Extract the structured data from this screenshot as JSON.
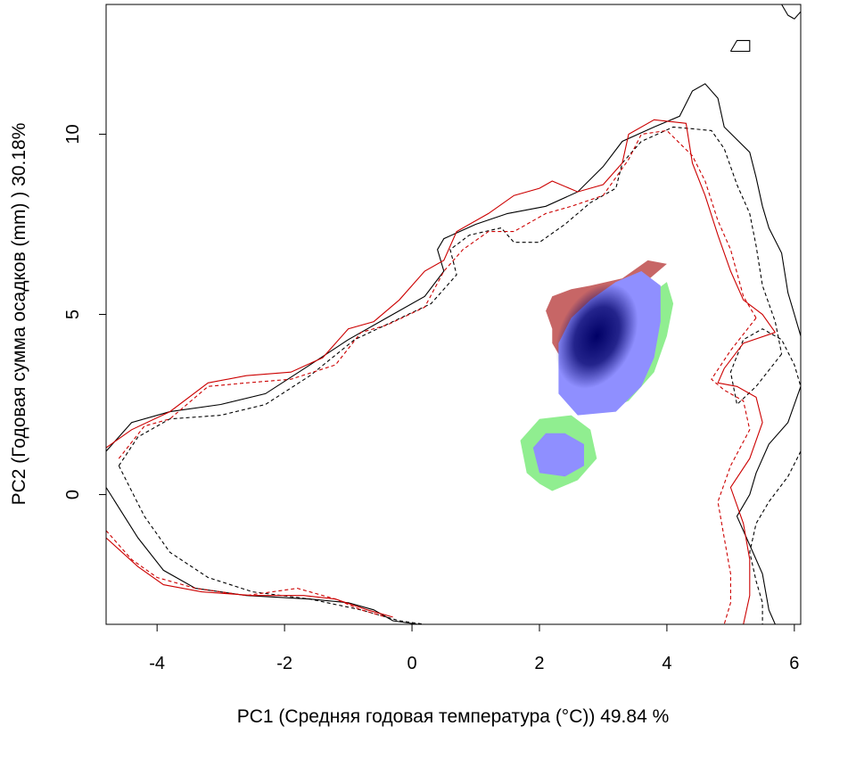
{
  "chart_data": {
    "type": "contour",
    "xlabel": "PC1 (Средняя годовая температура (°C)) 49.84 %",
    "ylabel": "PC2 (Годовая сумма осадков  (mm) ) 30.18%",
    "xlim": [
      -4.8,
      6.1
    ],
    "ylim": [
      -3.6,
      13.6
    ],
    "x_ticks": [
      -4,
      -2,
      0,
      2,
      4,
      6
    ],
    "y_ticks": [
      0,
      5,
      10
    ],
    "x_tick_labels": [
      "-4",
      "-2",
      "0",
      "2",
      "4",
      "6"
    ],
    "y_tick_labels": [
      "0",
      "5",
      "10"
    ],
    "grid": false,
    "legend": "none",
    "colors": {
      "black": "#000000",
      "red": "#cc0000",
      "overlap_red": "#c76666",
      "overlap_green": "#90ee90",
      "overlap_blue_light": "#8f8fff",
      "overlap_blue_dark": "#000066"
    },
    "contours": [
      {
        "color": "#000000",
        "style": "solid",
        "points": [
          [
            -4.8,
            0.2
          ],
          [
            -4.3,
            -1.2
          ],
          [
            -3.9,
            -2.1
          ],
          [
            -3.4,
            -2.6
          ],
          [
            -2.6,
            -2.8
          ],
          [
            -1.6,
            -2.9
          ],
          [
            -1.0,
            -3.0
          ],
          [
            -0.6,
            -3.2
          ],
          [
            -0.3,
            -3.5
          ],
          [
            0.1,
            -3.6
          ]
        ]
      },
      {
        "color": "#000000",
        "style": "solid",
        "points": [
          [
            -4.8,
            1.2
          ],
          [
            -4.4,
            2.0
          ],
          [
            -3.8,
            2.3
          ],
          [
            -3.0,
            2.5
          ],
          [
            -2.3,
            2.8
          ],
          [
            -1.6,
            3.6
          ],
          [
            -1.0,
            4.3
          ],
          [
            -0.4,
            4.9
          ],
          [
            0.2,
            5.5
          ],
          [
            0.5,
            6.2
          ],
          [
            0.4,
            6.8
          ],
          [
            0.5,
            7.1
          ],
          [
            1.0,
            7.5
          ],
          [
            1.5,
            7.8
          ],
          [
            2.1,
            8.0
          ],
          [
            2.6,
            8.4
          ],
          [
            3.0,
            9.1
          ],
          [
            3.3,
            9.8
          ],
          [
            3.8,
            10.2
          ],
          [
            4.2,
            10.5
          ],
          [
            4.4,
            11.2
          ],
          [
            4.6,
            11.4
          ],
          [
            4.8,
            11.0
          ],
          [
            4.9,
            10.2
          ],
          [
            5.3,
            9.5
          ],
          [
            5.4,
            8.8
          ],
          [
            5.5,
            8.0
          ],
          [
            5.6,
            7.4
          ],
          [
            5.8,
            6.7
          ],
          [
            5.9,
            5.6
          ],
          [
            6.0,
            5.0
          ],
          [
            6.1,
            4.4
          ]
        ]
      },
      {
        "color": "#000000",
        "style": "solid",
        "points": [
          [
            6.1,
            3.0
          ],
          [
            5.9,
            2.0
          ],
          [
            5.6,
            1.4
          ],
          [
            5.4,
            0.6
          ],
          [
            5.3,
            0.0
          ],
          [
            5.1,
            -0.6
          ],
          [
            5.3,
            -1.4
          ],
          [
            5.5,
            -2.2
          ],
          [
            5.6,
            -3.2
          ],
          [
            5.7,
            -3.6
          ]
        ]
      },
      {
        "color": "#000000",
        "style": "solid",
        "points": [
          [
            5.0,
            12.3
          ],
          [
            5.1,
            12.6
          ],
          [
            5.3,
            12.6
          ],
          [
            5.3,
            12.3
          ],
          [
            5.0,
            12.3
          ]
        ]
      },
      {
        "color": "#000000",
        "style": "solid",
        "points": [
          [
            5.8,
            13.6
          ],
          [
            5.9,
            13.3
          ],
          [
            6.0,
            13.2
          ],
          [
            6.1,
            13.4
          ]
        ]
      },
      {
        "color": "#000000",
        "style": "dashed",
        "points": [
          [
            -4.6,
            0.8
          ],
          [
            -4.2,
            -0.6
          ],
          [
            -3.8,
            -1.6
          ],
          [
            -3.2,
            -2.3
          ],
          [
            -2.5,
            -2.7
          ],
          [
            -1.6,
            -2.9
          ],
          [
            -0.8,
            -3.2
          ],
          [
            -0.2,
            -3.5
          ],
          [
            0.2,
            -3.6
          ]
        ]
      },
      {
        "color": "#000000",
        "style": "dashed",
        "points": [
          [
            -4.6,
            0.8
          ],
          [
            -4.3,
            1.6
          ],
          [
            -3.8,
            2.1
          ],
          [
            -3.0,
            2.2
          ],
          [
            -2.3,
            2.5
          ],
          [
            -1.6,
            3.3
          ],
          [
            -0.9,
            4.3
          ],
          [
            -0.3,
            4.8
          ],
          [
            0.3,
            5.3
          ],
          [
            0.7,
            6.1
          ],
          [
            0.6,
            6.8
          ],
          [
            0.9,
            7.2
          ],
          [
            1.4,
            7.4
          ],
          [
            1.6,
            7.0
          ],
          [
            2.0,
            7.0
          ],
          [
            2.4,
            7.5
          ],
          [
            2.8,
            8.1
          ],
          [
            3.2,
            8.5
          ],
          [
            3.3,
            9.2
          ],
          [
            3.6,
            9.8
          ],
          [
            4.1,
            10.2
          ],
          [
            4.7,
            10.1
          ],
          [
            4.9,
            9.6
          ],
          [
            5.1,
            8.6
          ],
          [
            5.3,
            7.8
          ],
          [
            5.4,
            6.9
          ],
          [
            5.5,
            5.8
          ],
          [
            5.7,
            4.8
          ],
          [
            5.8,
            3.9
          ]
        ]
      },
      {
        "color": "#000000",
        "style": "dashed",
        "points": [
          [
            5.8,
            3.9
          ],
          [
            5.4,
            3.0
          ],
          [
            5.1,
            2.5
          ],
          [
            5.0,
            3.4
          ],
          [
            5.2,
            4.3
          ],
          [
            5.5,
            4.6
          ],
          [
            5.8,
            4.3
          ],
          [
            6.0,
            3.6
          ],
          [
            6.1,
            3.0
          ]
        ]
      },
      {
        "color": "#000000",
        "style": "dashed",
        "points": [
          [
            6.1,
            1.2
          ],
          [
            5.9,
            0.5
          ],
          [
            5.6,
            -0.2
          ],
          [
            5.4,
            -0.8
          ],
          [
            5.3,
            -1.6
          ],
          [
            5.4,
            -2.4
          ],
          [
            5.5,
            -3.0
          ],
          [
            5.5,
            -3.6
          ]
        ]
      },
      {
        "color": "#cc0000",
        "style": "solid",
        "points": [
          [
            -4.8,
            -1.2
          ],
          [
            -4.3,
            -2.0
          ],
          [
            -3.9,
            -2.5
          ],
          [
            -3.3,
            -2.7
          ],
          [
            -2.5,
            -2.8
          ],
          [
            -1.7,
            -2.8
          ],
          [
            -1.2,
            -2.9
          ],
          [
            -0.7,
            -3.2
          ],
          [
            -0.3,
            -3.4
          ]
        ]
      },
      {
        "color": "#cc0000",
        "style": "solid",
        "points": [
          [
            -4.8,
            1.3
          ],
          [
            -4.4,
            1.8
          ],
          [
            -3.8,
            2.3
          ],
          [
            -3.2,
            3.1
          ],
          [
            -2.6,
            3.3
          ],
          [
            -1.9,
            3.4
          ],
          [
            -1.4,
            3.8
          ],
          [
            -1.0,
            4.6
          ],
          [
            -0.6,
            4.8
          ],
          [
            -0.2,
            5.4
          ],
          [
            0.2,
            6.2
          ],
          [
            0.5,
            6.5
          ],
          [
            0.7,
            7.3
          ],
          [
            1.2,
            7.8
          ],
          [
            1.6,
            8.3
          ],
          [
            2.0,
            8.5
          ],
          [
            2.2,
            8.7
          ],
          [
            2.6,
            8.4
          ],
          [
            3.0,
            8.6
          ],
          [
            3.3,
            9.2
          ],
          [
            3.4,
            10.0
          ],
          [
            3.8,
            10.4
          ],
          [
            4.3,
            10.3
          ],
          [
            4.4,
            9.2
          ],
          [
            4.6,
            8.3
          ],
          [
            4.8,
            7.2
          ],
          [
            5.0,
            6.2
          ],
          [
            5.2,
            5.4
          ],
          [
            5.5,
            5.0
          ],
          [
            5.7,
            4.5
          ]
        ]
      },
      {
        "color": "#cc0000",
        "style": "solid",
        "points": [
          [
            5.7,
            4.5
          ],
          [
            5.2,
            4.2
          ],
          [
            4.9,
            3.5
          ],
          [
            4.8,
            3.1
          ],
          [
            5.1,
            3.0
          ],
          [
            5.4,
            2.7
          ],
          [
            5.5,
            2.0
          ],
          [
            5.3,
            1.0
          ],
          [
            5.0,
            0.2
          ],
          [
            5.2,
            -0.8
          ],
          [
            5.3,
            -1.8
          ],
          [
            5.3,
            -2.8
          ],
          [
            5.2,
            -3.6
          ]
        ]
      },
      {
        "color": "#cc0000",
        "style": "dashed",
        "points": [
          [
            -4.8,
            -1.0
          ],
          [
            -4.4,
            -1.8
          ],
          [
            -4.0,
            -2.3
          ],
          [
            -3.4,
            -2.6
          ],
          [
            -2.6,
            -2.8
          ],
          [
            -1.8,
            -2.6
          ],
          [
            -1.2,
            -2.9
          ],
          [
            -0.8,
            -3.2
          ],
          [
            -0.4,
            -3.4
          ]
        ]
      },
      {
        "color": "#cc0000",
        "style": "dashed",
        "points": [
          [
            -4.6,
            1.0
          ],
          [
            -4.2,
            1.9
          ],
          [
            -3.8,
            2.1
          ],
          [
            -3.2,
            3.0
          ],
          [
            -2.6,
            3.1
          ],
          [
            -1.9,
            3.2
          ],
          [
            -1.2,
            3.6
          ],
          [
            -0.8,
            4.5
          ],
          [
            -0.4,
            4.7
          ],
          [
            0.2,
            5.2
          ],
          [
            0.5,
            6.2
          ],
          [
            0.8,
            6.8
          ],
          [
            1.2,
            7.3
          ],
          [
            1.6,
            7.3
          ],
          [
            2.1,
            7.8
          ],
          [
            2.5,
            8.0
          ],
          [
            3.0,
            8.3
          ],
          [
            3.4,
            9.3
          ],
          [
            3.6,
            10.0
          ],
          [
            4.0,
            10.1
          ],
          [
            4.4,
            9.4
          ],
          [
            4.6,
            8.7
          ],
          [
            4.8,
            7.6
          ],
          [
            5.0,
            6.8
          ],
          [
            5.2,
            5.5
          ],
          [
            5.4,
            4.9
          ]
        ]
      },
      {
        "color": "#cc0000",
        "style": "dashed",
        "points": [
          [
            5.4,
            4.9
          ],
          [
            5.0,
            4.0
          ],
          [
            4.7,
            3.2
          ],
          [
            4.9,
            2.9
          ],
          [
            5.2,
            2.6
          ],
          [
            5.3,
            1.8
          ],
          [
            5.0,
            0.8
          ],
          [
            4.8,
            -0.2
          ],
          [
            4.9,
            -1.2
          ],
          [
            5.0,
            -2.2
          ],
          [
            5.0,
            -3.0
          ],
          [
            4.9,
            -3.6
          ]
        ]
      }
    ],
    "overlap_regions": [
      {
        "name": "red",
        "color": "#c76666",
        "points": [
          [
            2.1,
            5.1
          ],
          [
            2.2,
            4.6
          ],
          [
            2.2,
            4.2
          ],
          [
            2.3,
            3.9
          ],
          [
            2.4,
            3.9
          ],
          [
            2.6,
            4.6
          ],
          [
            3.0,
            5.3
          ],
          [
            3.6,
            5.8
          ],
          [
            4.0,
            6.4
          ],
          [
            3.7,
            6.5
          ],
          [
            3.3,
            6.0
          ],
          [
            2.8,
            5.8
          ],
          [
            2.5,
            5.7
          ],
          [
            2.2,
            5.5
          ]
        ]
      },
      {
        "name": "green-upper",
        "color": "#90ee90",
        "points": [
          [
            3.0,
            2.3
          ],
          [
            3.4,
            2.6
          ],
          [
            3.8,
            3.4
          ],
          [
            4.0,
            4.4
          ],
          [
            4.1,
            5.3
          ],
          [
            4.0,
            5.9
          ],
          [
            3.7,
            5.5
          ],
          [
            3.3,
            4.8
          ],
          [
            3.0,
            4.0
          ],
          [
            2.9,
            3.0
          ]
        ]
      },
      {
        "name": "green-lower",
        "color": "#90ee90",
        "points": [
          [
            2.2,
            0.1
          ],
          [
            2.6,
            0.4
          ],
          [
            2.9,
            1.0
          ],
          [
            2.8,
            1.8
          ],
          [
            2.5,
            2.2
          ],
          [
            2.0,
            2.1
          ],
          [
            1.7,
            1.5
          ],
          [
            1.8,
            0.6
          ],
          [
            2.0,
            0.3
          ]
        ]
      },
      {
        "name": "blue-upper",
        "color": "#8f8fff",
        "points": [
          [
            2.3,
            2.8
          ],
          [
            2.6,
            2.2
          ],
          [
            3.2,
            2.3
          ],
          [
            3.6,
            3.0
          ],
          [
            3.8,
            3.8
          ],
          [
            3.9,
            4.8
          ],
          [
            3.9,
            5.8
          ],
          [
            3.6,
            6.2
          ],
          [
            3.2,
            5.9
          ],
          [
            2.8,
            5.4
          ],
          [
            2.5,
            4.9
          ],
          [
            2.3,
            4.2
          ],
          [
            2.3,
            3.4
          ]
        ]
      },
      {
        "name": "blue-lower",
        "color": "#8f8fff",
        "points": [
          [
            2.0,
            0.6
          ],
          [
            2.4,
            0.5
          ],
          [
            2.7,
            0.8
          ],
          [
            2.7,
            1.4
          ],
          [
            2.4,
            1.7
          ],
          [
            2.1,
            1.7
          ],
          [
            1.9,
            1.3
          ]
        ]
      }
    ],
    "density_peak": {
      "x": 2.9,
      "y": 4.4,
      "color": "#000066"
    }
  }
}
